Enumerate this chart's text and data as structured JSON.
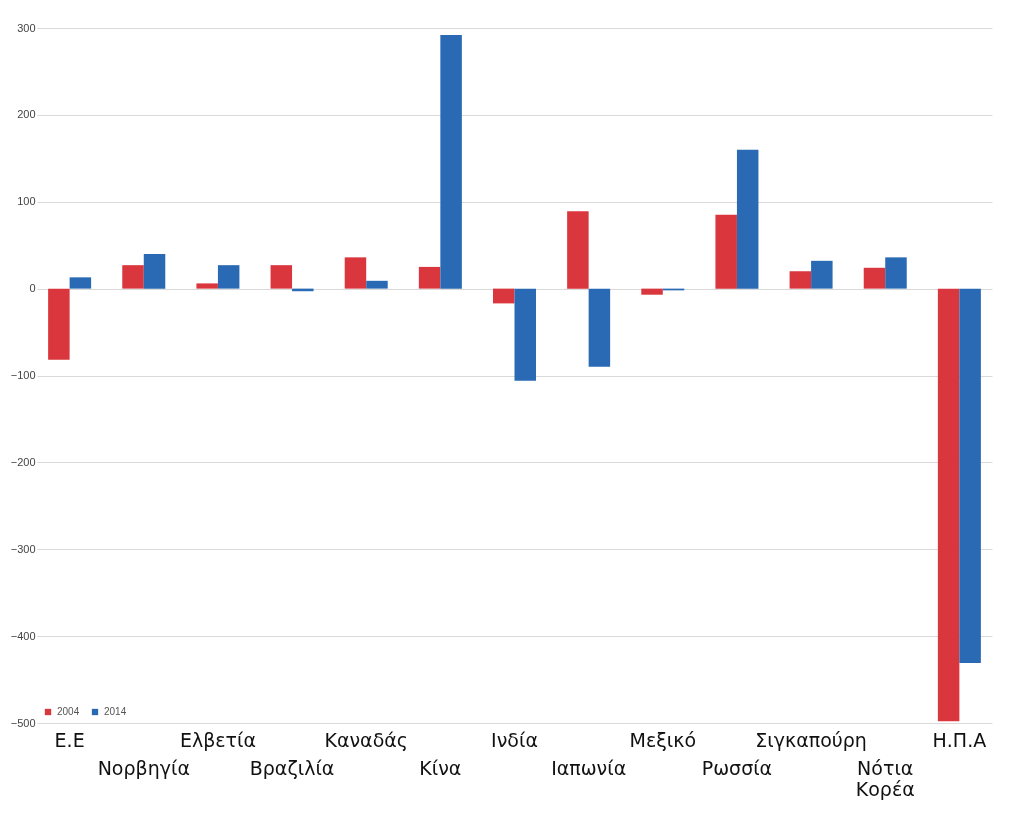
{
  "chart_data": {
    "type": "bar",
    "categories": [
      "Ε.Ε",
      "Νορβηγία",
      "Ελβετία",
      "Βραζιλία",
      "Καναδάς",
      "Κίνα",
      "Ινδία",
      "Ιαπωνία",
      "Μεξικό",
      "Ρωσσία",
      "Σιγκαπούρη",
      "Νότια Κορέα",
      "Η.Π.Α"
    ],
    "series": [
      {
        "name": "2004",
        "color": "#d9363e",
        "values": [
          -82,
          27,
          6,
          27,
          36,
          25,
          -17,
          89,
          -7,
          85,
          20,
          24,
          -498
        ]
      },
      {
        "name": "2014",
        "color": "#2a6ab4",
        "values": [
          13,
          40,
          27,
          -3,
          9,
          292,
          -106,
          -90,
          -2,
          160,
          32,
          36,
          -431
        ]
      }
    ],
    "ylim": [
      -500,
      300
    ],
    "yticks": [
      -500,
      -400,
      -300,
      -200,
      -100,
      0,
      100,
      200,
      300
    ],
    "grid": "y",
    "legend": "bottom left"
  }
}
